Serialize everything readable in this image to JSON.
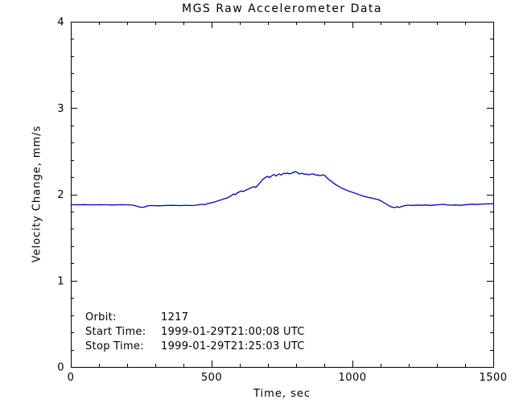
{
  "chart_data": {
    "type": "line",
    "title": "MGS Raw Accelerometer Data",
    "xlabel": "Time, sec",
    "ylabel": "Velocity Change, mm/s",
    "xlim": [
      0,
      1500
    ],
    "ylim": [
      0,
      4
    ],
    "x_major_ticks": [
      0,
      500,
      1000,
      1500
    ],
    "x_tick_labels": [
      "0",
      "500",
      "1000",
      "1500"
    ],
    "x_minor_step": 100,
    "y_major_ticks": [
      0,
      1,
      2,
      3,
      4
    ],
    "y_tick_labels": [
      "0",
      "1",
      "2",
      "3",
      "4"
    ],
    "y_minor_step": 0.2,
    "grid": false,
    "legend": "none",
    "line_color": "#0000C8",
    "series": [
      {
        "name": "velocity-change",
        "points": [
          [
            0,
            1.88
          ],
          [
            25,
            1.879
          ],
          [
            50,
            1.881
          ],
          [
            75,
            1.878
          ],
          [
            100,
            1.88
          ],
          [
            125,
            1.879
          ],
          [
            150,
            1.877
          ],
          [
            175,
            1.88
          ],
          [
            200,
            1.879
          ],
          [
            220,
            1.875
          ],
          [
            235,
            1.862
          ],
          [
            245,
            1.852
          ],
          [
            255,
            1.85
          ],
          [
            263,
            1.855
          ],
          [
            272,
            1.866
          ],
          [
            285,
            1.87
          ],
          [
            310,
            1.867
          ],
          [
            335,
            1.87
          ],
          [
            360,
            1.872
          ],
          [
            385,
            1.869
          ],
          [
            410,
            1.873
          ],
          [
            430,
            1.869
          ],
          [
            445,
            1.874
          ],
          [
            455,
            1.88
          ],
          [
            465,
            1.884
          ],
          [
            475,
            1.881
          ],
          [
            485,
            1.892
          ],
          [
            495,
            1.899
          ],
          [
            505,
            1.907
          ],
          [
            515,
            1.916
          ],
          [
            525,
            1.928
          ],
          [
            535,
            1.937
          ],
          [
            545,
            1.95
          ],
          [
            555,
            1.958
          ],
          [
            565,
            1.975
          ],
          [
            572,
            1.99
          ],
          [
            578,
            2.005
          ],
          [
            584,
            1.996
          ],
          [
            590,
            2.015
          ],
          [
            598,
            2.028
          ],
          [
            606,
            2.04
          ],
          [
            612,
            2.032
          ],
          [
            620,
            2.048
          ],
          [
            628,
            2.058
          ],
          [
            636,
            2.07
          ],
          [
            644,
            2.082
          ],
          [
            650,
            2.09
          ],
          [
            656,
            2.079
          ],
          [
            662,
            2.098
          ],
          [
            668,
            2.12
          ],
          [
            674,
            2.145
          ],
          [
            680,
            2.168
          ],
          [
            686,
            2.185
          ],
          [
            692,
            2.198
          ],
          [
            698,
            2.21
          ],
          [
            704,
            2.196
          ],
          [
            710,
            2.205
          ],
          [
            716,
            2.222
          ],
          [
            722,
            2.23
          ],
          [
            728,
            2.212
          ],
          [
            734,
            2.226
          ],
          [
            740,
            2.238
          ],
          [
            746,
            2.224
          ],
          [
            752,
            2.236
          ],
          [
            758,
            2.245
          ],
          [
            764,
            2.24
          ],
          [
            770,
            2.248
          ],
          [
            776,
            2.238
          ],
          [
            782,
            2.242
          ],
          [
            788,
            2.252
          ],
          [
            794,
            2.258
          ],
          [
            800,
            2.262
          ],
          [
            806,
            2.248
          ],
          [
            812,
            2.236
          ],
          [
            818,
            2.246
          ],
          [
            824,
            2.24
          ],
          [
            830,
            2.232
          ],
          [
            836,
            2.238
          ],
          [
            842,
            2.226
          ],
          [
            848,
            2.23
          ],
          [
            854,
            2.234
          ],
          [
            860,
            2.238
          ],
          [
            866,
            2.228
          ],
          [
            872,
            2.222
          ],
          [
            878,
            2.226
          ],
          [
            884,
            2.214
          ],
          [
            890,
            2.22
          ],
          [
            896,
            2.226
          ],
          [
            902,
            2.218
          ],
          [
            908,
            2.195
          ],
          [
            914,
            2.178
          ],
          [
            920,
            2.162
          ],
          [
            926,
            2.15
          ],
          [
            932,
            2.132
          ],
          [
            938,
            2.118
          ],
          [
            944,
            2.105
          ],
          [
            950,
            2.094
          ],
          [
            958,
            2.08
          ],
          [
            966,
            2.066
          ],
          [
            974,
            2.055
          ],
          [
            982,
            2.044
          ],
          [
            990,
            2.034
          ],
          [
            998,
            2.026
          ],
          [
            1006,
            2.016
          ],
          [
            1014,
            2.008
          ],
          [
            1022,
            1.998
          ],
          [
            1030,
            1.988
          ],
          [
            1040,
            1.978
          ],
          [
            1050,
            1.97
          ],
          [
            1060,
            1.962
          ],
          [
            1070,
            1.956
          ],
          [
            1080,
            1.948
          ],
          [
            1090,
            1.94
          ],
          [
            1100,
            1.926
          ],
          [
            1110,
            1.908
          ],
          [
            1120,
            1.888
          ],
          [
            1130,
            1.866
          ],
          [
            1140,
            1.852
          ],
          [
            1150,
            1.846
          ],
          [
            1158,
            1.856
          ],
          [
            1166,
            1.848
          ],
          [
            1174,
            1.858
          ],
          [
            1182,
            1.866
          ],
          [
            1190,
            1.872
          ],
          [
            1200,
            1.874
          ],
          [
            1215,
            1.871
          ],
          [
            1230,
            1.876
          ],
          [
            1245,
            1.872
          ],
          [
            1260,
            1.877
          ],
          [
            1275,
            1.871
          ],
          [
            1290,
            1.876
          ],
          [
            1305,
            1.88
          ],
          [
            1320,
            1.884
          ],
          [
            1335,
            1.878
          ],
          [
            1350,
            1.874
          ],
          [
            1365,
            1.877
          ],
          [
            1380,
            1.872
          ],
          [
            1395,
            1.877
          ],
          [
            1410,
            1.882
          ],
          [
            1425,
            1.886
          ],
          [
            1440,
            1.882
          ],
          [
            1455,
            1.886
          ],
          [
            1470,
            1.888
          ],
          [
            1485,
            1.89
          ],
          [
            1500,
            1.892
          ]
        ]
      }
    ]
  },
  "annotations": {
    "orbit_label": "Orbit:",
    "orbit_value": "1217",
    "start_label": "Start Time:",
    "start_value": "1999-01-29T21:00:08 UTC",
    "stop_label": "Stop Time:",
    "stop_value": "1999-01-29T21:25:03 UTC"
  }
}
